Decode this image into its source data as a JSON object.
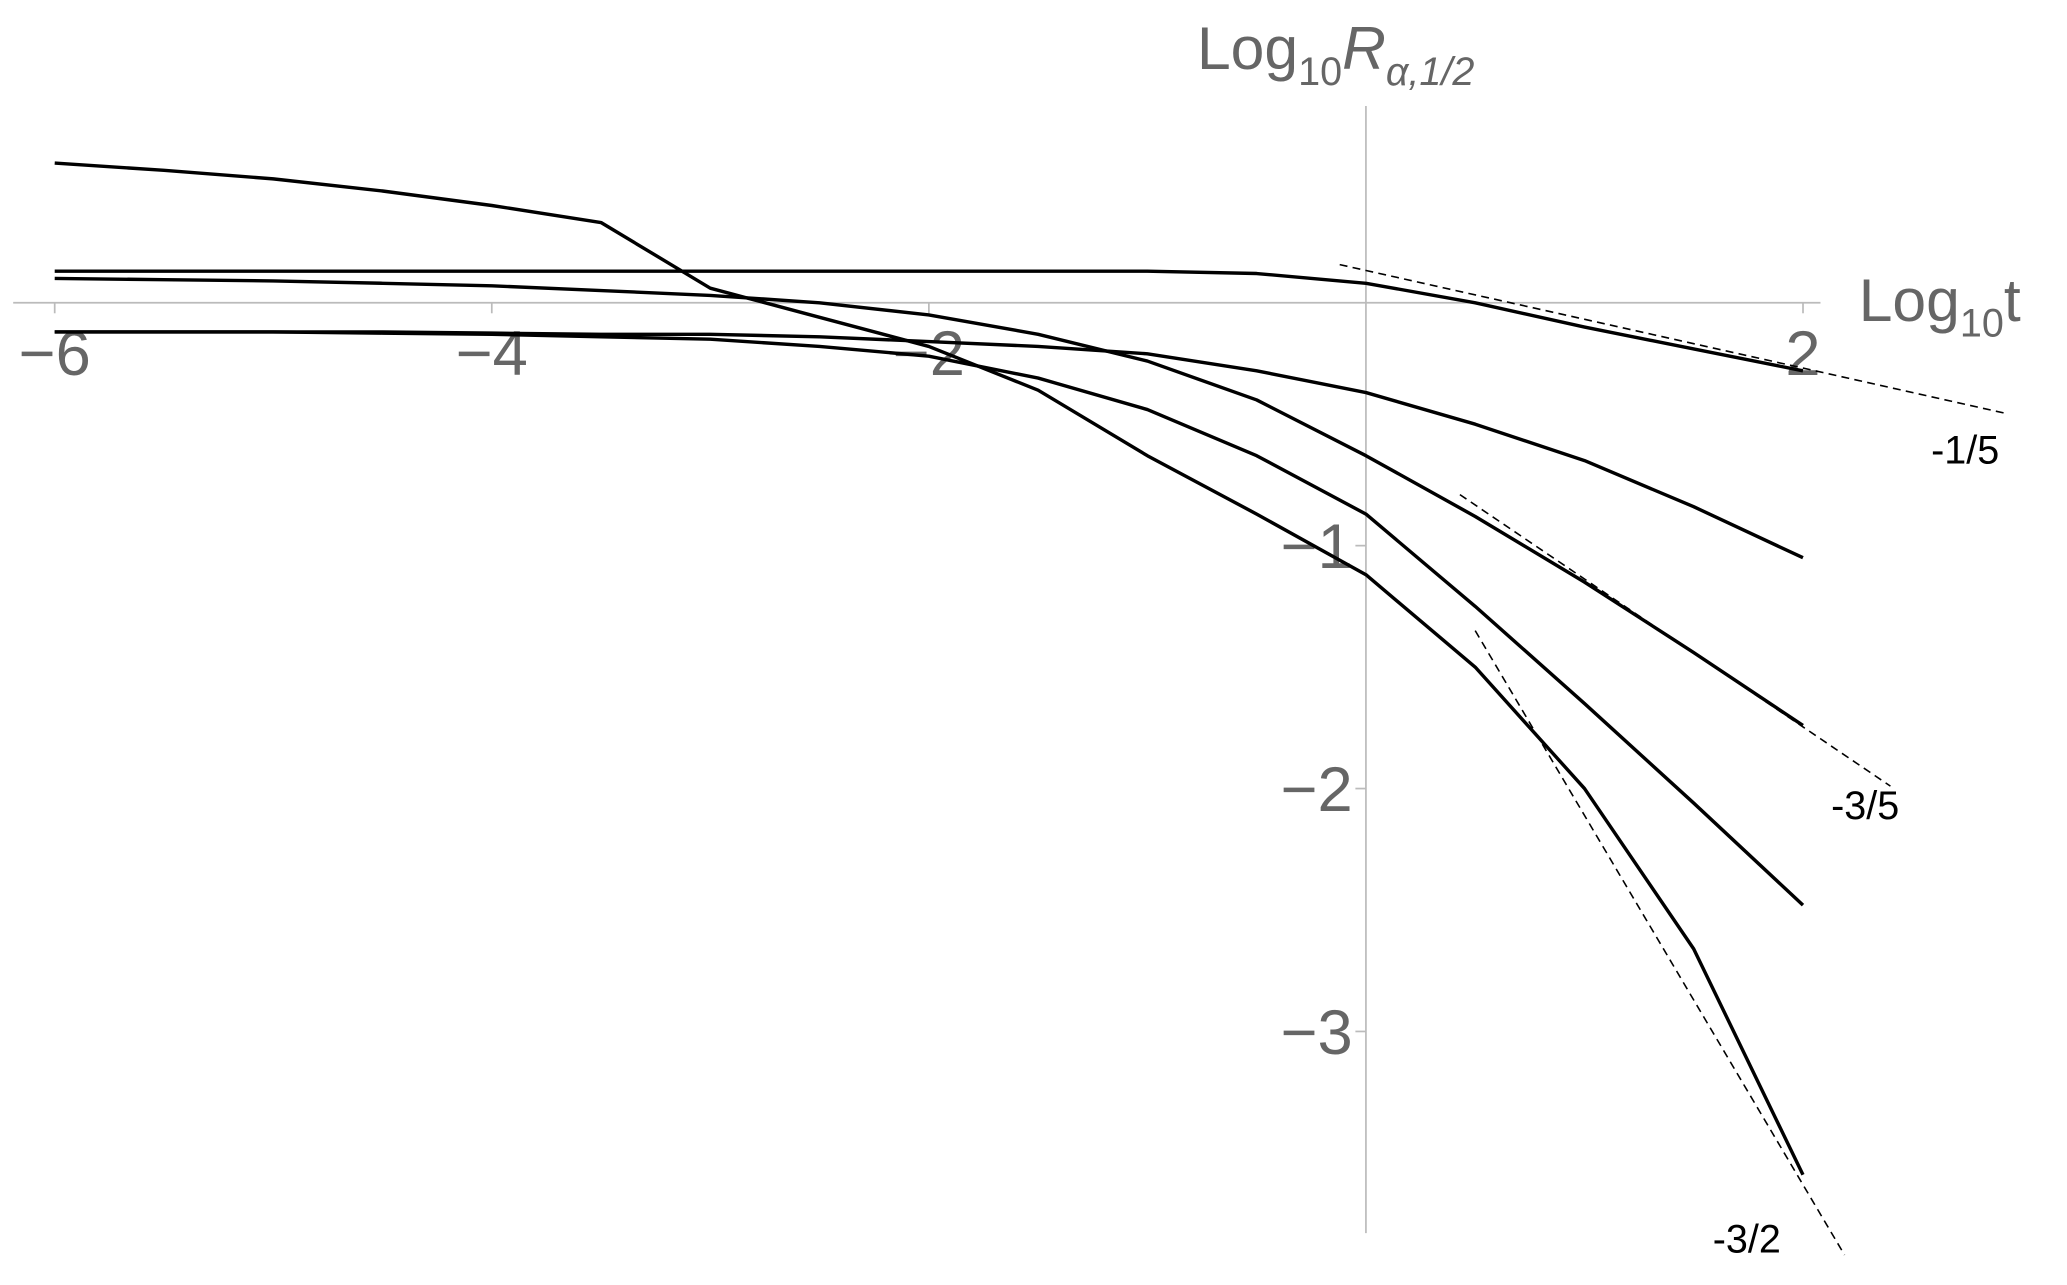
{
  "chart_data": {
    "type": "line",
    "x_label": [
      "Log",
      "10",
      "t"
    ],
    "y_label": [
      "Log",
      "10",
      "R",
      "α,1/2"
    ],
    "xlim": [
      -6.19,
      2.08
    ],
    "ylim": [
      -3.83,
      0.81
    ],
    "xticks": [
      {
        "value": -6,
        "label": "−6"
      },
      {
        "value": -4,
        "label": "−4"
      },
      {
        "value": -2,
        "label": "−2"
      },
      2
    ],
    "yticks": [
      {
        "value": -1,
        "label": "−1"
      },
      {
        "value": -2,
        "label": "−2"
      },
      {
        "value": -3,
        "label": "−3"
      }
    ],
    "color": "#000000",
    "x": [
      -6,
      -5.5,
      -5,
      -4.5,
      -4,
      -3.5,
      -3,
      -2.5,
      -2,
      -1.5,
      -1,
      -0.5,
      0,
      0.5,
      1,
      1.5,
      2
    ],
    "series": [
      {
        "values": [
          0.575,
          0.545,
          0.51,
          0.46,
          0.4,
          0.33,
          0.06,
          -0.06,
          -0.18,
          -0.36,
          -0.63,
          -0.87,
          -1.12,
          -1.5,
          -2.0,
          -2.66,
          -3.59
        ]
      },
      {
        "values": [
          0.13,
          0.13,
          0.13,
          0.13,
          0.13,
          0.13,
          0.13,
          0.13,
          0.13,
          0.13,
          0.13,
          0.12,
          0.08,
          0.0,
          -0.1,
          -0.19,
          -0.28
        ]
      },
      {
        "values": [
          0.1,
          0.095,
          0.09,
          0.08,
          0.07,
          0.05,
          0.03,
          0.0,
          -0.05,
          -0.13,
          -0.24,
          -0.4,
          -0.63,
          -0.88,
          -1.15,
          -1.44,
          -1.74
        ]
      },
      {
        "values": [
          -0.12,
          -0.12,
          -0.12,
          -0.12,
          -0.125,
          -0.13,
          -0.13,
          -0.14,
          -0.16,
          -0.18,
          -0.21,
          -0.28,
          -0.37,
          -0.5,
          -0.65,
          -0.84,
          -1.05
        ]
      },
      {
        "values": [
          -0.12,
          -0.12,
          -0.12,
          -0.125,
          -0.13,
          -0.14,
          -0.15,
          -0.18,
          -0.22,
          -0.31,
          -0.44,
          -0.63,
          -0.87,
          -1.25,
          -1.65,
          -2.06,
          -2.48
        ]
      }
    ],
    "reference_lines": [
      {
        "label": "-1/5",
        "x": [
          -0.12,
          2.93
        ],
        "y": [
          0.157,
          -0.456
        ]
      },
      {
        "label": "-3/5",
        "x": [
          0.43,
          2.4
        ],
        "y": [
          -0.79,
          -1.99
        ]
      },
      {
        "label": "-3/2",
        "x": [
          0.5,
          2.19
        ],
        "y": [
          -1.35,
          -3.92
        ]
      }
    ]
  }
}
